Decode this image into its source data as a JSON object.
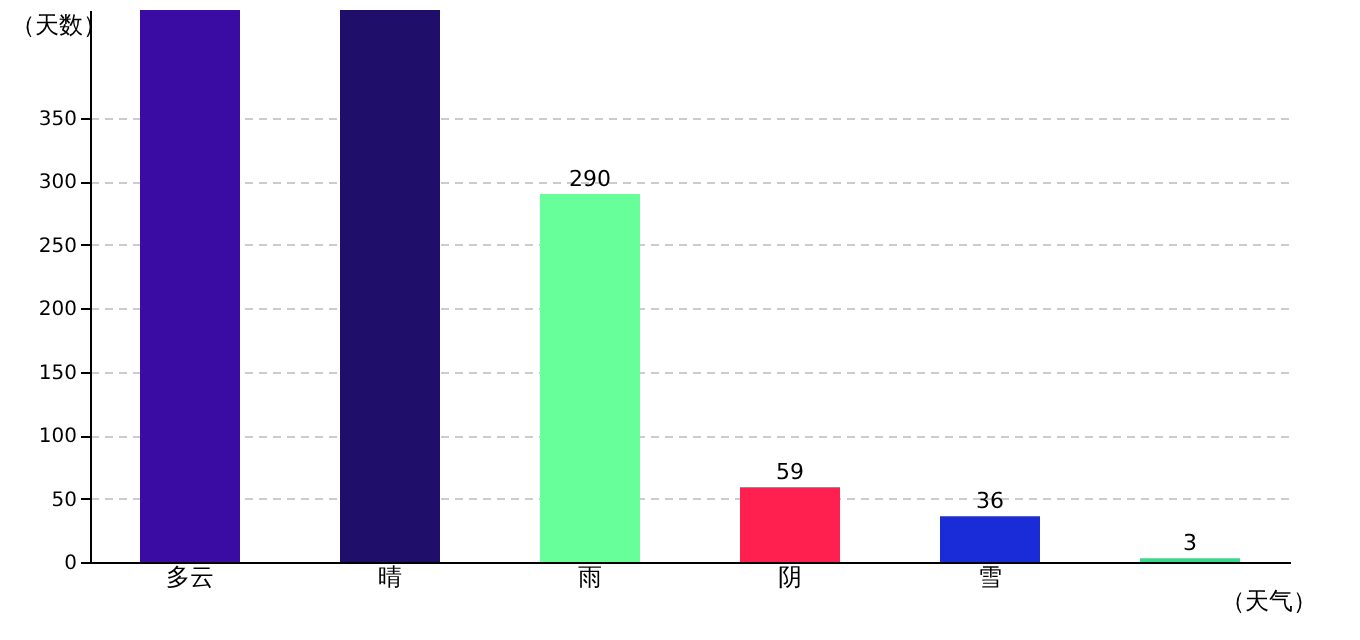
{
  "chart_data": {
    "type": "bar",
    "xlabel": "（天气）",
    "ylabel": "（天数）",
    "categories": [
      "多云",
      "晴",
      "雨",
      "阴",
      "雪",
      null
    ],
    "values": [
      435,
      435,
      290,
      59,
      36,
      3
    ],
    "colors": [
      "#3a0ca3",
      "#1f0f6b",
      "#66ff99",
      "#ff2050",
      "#1a2bd8",
      "#33dd88"
    ],
    "value_labels": [
      null,
      null,
      "290",
      "59",
      "36",
      "3"
    ],
    "ylim": [
      0,
      435
    ],
    "yticks": [
      0,
      50,
      100,
      150,
      200,
      250,
      300,
      350
    ],
    "grid": "y"
  }
}
